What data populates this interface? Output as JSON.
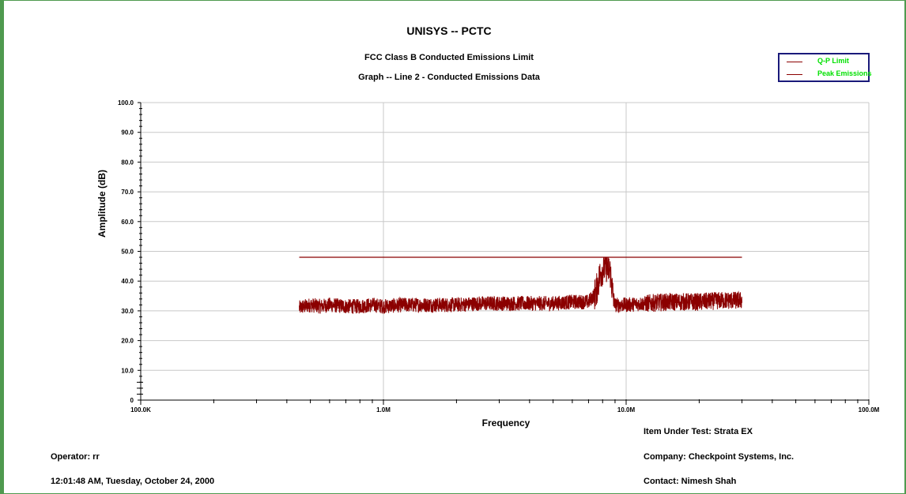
{
  "chart_data": {
    "type": "line",
    "title": "UNISYS -- PCTC",
    "subtitle1": "FCC Class B Conducted Emissions Limit",
    "subtitle2": "Graph -- Line 2 - Conducted Emissions Data",
    "xlabel": "Frequency",
    "ylabel": "Amplitude (dB)",
    "x_scale": "log",
    "xlim_hz": [
      100000,
      100000000
    ],
    "ylim": [
      0,
      100
    ],
    "x_ticks": [
      {
        "value": 100000,
        "label": "100.0K"
      },
      {
        "value": 1000000,
        "label": "1.0M"
      },
      {
        "value": 10000000,
        "label": "10.0M"
      },
      {
        "value": 100000000,
        "label": "100.0M"
      }
    ],
    "y_ticks": [
      {
        "value": 0,
        "label": "0"
      },
      {
        "value": 10,
        "label": "10.0"
      },
      {
        "value": 20,
        "label": "20.0"
      },
      {
        "value": 30,
        "label": "30.0"
      },
      {
        "value": 40,
        "label": "40.0"
      },
      {
        "value": 50,
        "label": "50.0"
      },
      {
        "value": 60,
        "label": "60.0"
      },
      {
        "value": 70,
        "label": "70.0"
      },
      {
        "value": 80,
        "label": "80.0"
      },
      {
        "value": 90,
        "label": "90.0"
      },
      {
        "value": 100,
        "label": "100.0"
      }
    ],
    "grid": true,
    "legend_position": "top-right",
    "series": [
      {
        "name": "Q-P Limit",
        "color": "#8b0000",
        "points": [
          [
            450000,
            48
          ],
          [
            30000000,
            48
          ]
        ]
      },
      {
        "name": "Peak Emissions",
        "color": "#8b0000",
        "points": [
          [
            450000,
            31
          ],
          [
            500000,
            32
          ],
          [
            550000,
            31.5
          ],
          [
            600000,
            32
          ],
          [
            700000,
            31.5
          ],
          [
            800000,
            31.5
          ],
          [
            900000,
            32
          ],
          [
            1000000,
            31.5
          ],
          [
            1200000,
            32
          ],
          [
            1500000,
            32
          ],
          [
            2000000,
            32
          ],
          [
            2500000,
            32.5
          ],
          [
            3000000,
            32.5
          ],
          [
            4000000,
            32.5
          ],
          [
            5000000,
            32.5
          ],
          [
            6000000,
            33
          ],
          [
            7000000,
            33
          ],
          [
            7500000,
            36
          ],
          [
            7800000,
            42
          ],
          [
            8000000,
            44
          ],
          [
            8300000,
            45
          ],
          [
            8600000,
            43
          ],
          [
            8800000,
            36
          ],
          [
            9000000,
            32
          ],
          [
            10000000,
            32
          ],
          [
            12000000,
            32.5
          ],
          [
            15000000,
            33
          ],
          [
            20000000,
            33
          ],
          [
            25000000,
            33.5
          ],
          [
            30000000,
            33.5
          ]
        ],
        "noise_amplitude_db": 2.5
      }
    ]
  },
  "footer": {
    "item_under_test": "Item Under Test:  Strata EX",
    "operator": "Operator: rr",
    "company": "Company:  Checkpoint Systems, Inc.",
    "timestamp": "12:01:48 AM, Tuesday, October 24, 2000",
    "contact": "Contact:  Nimesh Shah"
  }
}
